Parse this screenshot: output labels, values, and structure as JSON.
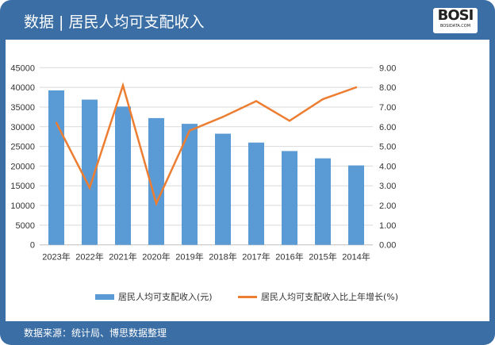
{
  "header": {
    "title": "数据 | 居民人均可支配收入",
    "logo_text": "BOSI",
    "logo_sub": "BOSIDATA.COM"
  },
  "footer": {
    "source": "数据来源：统计局、博思数据整理"
  },
  "chart_data": {
    "type": "bar+line",
    "categories": [
      "2023年",
      "2022年",
      "2021年",
      "2020年",
      "2019年",
      "2018年",
      "2017年",
      "2016年",
      "2015年",
      "2014年"
    ],
    "series": [
      {
        "name": "居民人均可支配收入(元)",
        "type": "bar",
        "axis": "left",
        "color": "#5b9bd5",
        "values": [
          39218,
          36883,
          35128,
          32189,
          30733,
          28228,
          25974,
          23821,
          21966,
          20167
        ]
      },
      {
        "name": "居民人均可支配收入比上年增长(%)",
        "type": "line",
        "axis": "right",
        "color": "#ed7d31",
        "values": [
          6.2,
          2.9,
          8.1,
          2.1,
          5.8,
          6.5,
          7.3,
          6.3,
          7.4,
          8.0
        ]
      }
    ],
    "ylim_left": [
      0,
      45000
    ],
    "yticks_left": [
      "0",
      "5000",
      "10000",
      "15000",
      "20000",
      "25000",
      "30000",
      "35000",
      "40000",
      "45000"
    ],
    "ylim_right": [
      0,
      9
    ],
    "yticks_right": [
      "0.00",
      "1.00",
      "2.00",
      "3.00",
      "4.00",
      "5.00",
      "6.00",
      "7.00",
      "8.00",
      "9.00"
    ],
    "grid": true,
    "legend": "bottom"
  }
}
